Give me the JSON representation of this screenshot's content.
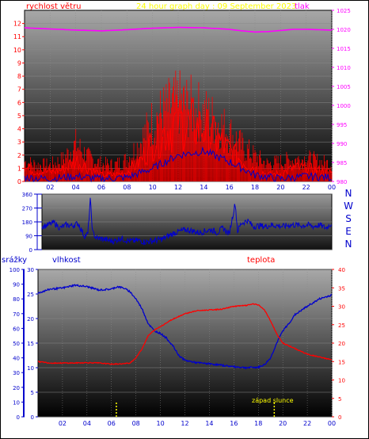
{
  "header": {
    "wind_label": "rychlost větru",
    "title": "24 hour graph day : 09 September 2023",
    "pressure_label": "tlak"
  },
  "colors": {
    "wind": "#ff0000",
    "gust": "#ff0000",
    "pressure": "#ff00ff",
    "direction": "#0000cc",
    "humidity": "#0000cc",
    "temperature": "#ff0000",
    "title": "#ffff00",
    "sunset_marker": "#ffff00",
    "rain_axis": "#0000cc"
  },
  "chart_data": [
    {
      "type": "line",
      "name": "wind_and_pressure",
      "title": "24 hour graph day : 09 September 2023",
      "xlabel": "",
      "ylabel_left": "rychlost větru",
      "ylabel_right": "tlak",
      "x_ticks": [
        "02",
        "04",
        "06",
        "08",
        "10",
        "12",
        "14",
        "16",
        "18",
        "20",
        "22",
        "00"
      ],
      "y_left_ticks": [
        "0",
        "1",
        "2",
        "3",
        "4",
        "5",
        "6",
        "7",
        "8",
        "9",
        "10",
        "11",
        "12"
      ],
      "y_right_ticks": [
        "980",
        "985",
        "990",
        "995",
        "1000",
        "1005",
        "1010",
        "1015",
        "1020",
        "1025"
      ],
      "y_left_lim": [
        0,
        13
      ],
      "y_right_lim": [
        980,
        1025
      ],
      "grid": true,
      "series": [
        {
          "key": "wind",
          "axis": "left",
          "x": [
            0,
            1,
            2,
            3,
            4,
            5,
            6,
            7,
            8,
            9,
            10,
            11,
            12,
            13,
            14,
            15,
            16,
            17,
            18,
            19,
            20,
            21,
            22,
            23,
            24
          ],
          "values": [
            1.0,
            0.8,
            0.7,
            0.9,
            1.6,
            1.0,
            0.5,
            0.5,
            0.7,
            1.5,
            3.0,
            3.8,
            4.5,
            4.3,
            4.0,
            3.2,
            2.3,
            1.6,
            1.0,
            0.5,
            0.6,
            1.0,
            1.0,
            0.8,
            0.7
          ]
        },
        {
          "key": "gust",
          "axis": "left",
          "x": [
            0,
            1,
            2,
            3,
            4,
            5,
            6,
            7,
            8,
            9,
            10,
            11,
            12,
            13,
            14,
            15,
            16,
            17,
            18,
            19,
            20,
            21,
            22,
            23,
            24
          ],
          "values": [
            1.8,
            1.5,
            1.5,
            2.0,
            3.4,
            2.2,
            1.6,
            1.5,
            2.0,
            3.5,
            5.5,
            6.5,
            7.2,
            6.8,
            6.2,
            5.5,
            4.5,
            3.2,
            2.3,
            1.6,
            1.8,
            2.0,
            2.1,
            1.8,
            1.6
          ]
        },
        {
          "key": "wind_avg",
          "axis": "left",
          "x": [
            0,
            2,
            4,
            6,
            8,
            10,
            12,
            14,
            16,
            18,
            20,
            22,
            24
          ],
          "values": [
            0.3,
            0.2,
            0.4,
            0.2,
            0.3,
            1.0,
            2.0,
            2.3,
            1.5,
            0.5,
            0.2,
            0.4,
            0.3
          ]
        },
        {
          "key": "pressure",
          "axis": "right",
          "x": [
            0,
            2,
            4,
            6,
            8,
            10,
            12,
            14,
            16,
            17,
            18,
            19,
            20,
            21,
            22,
            23,
            24
          ],
          "values": [
            1020.4,
            1020.1,
            1019.8,
            1019.6,
            1019.9,
            1020.3,
            1020.5,
            1020.4,
            1020.0,
            1019.6,
            1019.3,
            1019.4,
            1019.7,
            1020.0,
            1020.0,
            1019.9,
            1019.8
          ]
        }
      ]
    },
    {
      "type": "line",
      "name": "wind_direction",
      "x_ticks": [],
      "y_ticks": [
        "0",
        "90",
        "180",
        "270",
        "360"
      ],
      "y_lim": [
        0,
        360
      ],
      "compass_labels": [
        "N",
        "W",
        "S",
        "E",
        "N"
      ],
      "series": [
        {
          "key": "direction",
          "x": [
            0,
            0.5,
            1,
            1.5,
            2,
            2.5,
            3,
            3.5,
            3.8,
            4.0,
            4.2,
            4.5,
            5,
            5.5,
            6,
            6.5,
            7,
            7.5,
            8,
            8.5,
            9,
            9.5,
            10,
            10.5,
            11,
            11.5,
            12,
            12.5,
            13,
            13.5,
            14,
            14.5,
            15,
            15.5,
            16,
            16.2,
            16.5,
            16.8,
            17,
            17.5,
            18,
            18.5,
            19,
            19.5,
            20,
            20.5,
            21,
            21.5,
            22,
            22.5,
            23,
            23.5,
            24
          ],
          "values": [
            150,
            160,
            175,
            140,
            160,
            155,
            170,
            90,
            100,
            320,
            110,
            75,
            70,
            60,
            55,
            75,
            60,
            55,
            60,
            50,
            55,
            60,
            70,
            90,
            110,
            120,
            130,
            120,
            110,
            120,
            130,
            110,
            140,
            100,
            300,
            120,
            170,
            180,
            190,
            150,
            155,
            150,
            160,
            155,
            150,
            160,
            160,
            155,
            160,
            150,
            160,
            140,
            170
          ]
        }
      ]
    },
    {
      "type": "line",
      "name": "temperature_humidity_rain",
      "ylabel_rain": "srážky",
      "ylabel_humidity": "vlhkost",
      "ylabel_temperature": "teplota",
      "x_ticks": [
        "02",
        "04",
        "06",
        "08",
        "10",
        "12",
        "14",
        "16",
        "18",
        "20",
        "22",
        "00"
      ],
      "y_rain_ticks": [
        "0",
        "10",
        "20",
        "30",
        "40",
        "50",
        "60",
        "70",
        "80",
        "90",
        "100"
      ],
      "y_humidity_ticks": [
        "0",
        "5",
        "10",
        "15",
        "20",
        "25",
        "30"
      ],
      "y_temperature_ticks": [
        "0",
        "5",
        "10",
        "15",
        "20",
        "25",
        "30",
        "35",
        "40"
      ],
      "y_rain_lim": [
        0,
        100
      ],
      "y_humidity_lim": [
        0,
        30
      ],
      "y_temperature_lim": [
        0,
        40
      ],
      "sunset_label": "západ slunce",
      "sunset_time": 19.3,
      "sunrise_time": 6.4,
      "series": [
        {
          "key": "humidity",
          "axis": "vlhkost",
          "x": [
            0,
            0.5,
            1,
            2,
            3,
            4,
            5,
            6,
            6.5,
            7,
            7.5,
            8,
            8.5,
            9,
            9.5,
            10,
            10.5,
            11,
            11.5,
            12,
            13,
            14,
            15,
            16,
            17,
            18,
            18.5,
            19,
            19.5,
            20,
            20.5,
            21,
            22,
            23,
            24
          ],
          "values": [
            25.2,
            25.6,
            26.0,
            26.2,
            26.8,
            26.5,
            25.8,
            26.0,
            26.5,
            26.2,
            25.5,
            24.0,
            22.0,
            19.0,
            17.5,
            17.0,
            16.0,
            14.5,
            12.5,
            11.5,
            11.0,
            10.8,
            10.5,
            10.2,
            10.0,
            10.1,
            10.6,
            12.0,
            15.0,
            17.5,
            19.0,
            20.8,
            22.5,
            24.0,
            24.8
          ]
        },
        {
          "key": "temperature",
          "axis": "teplota",
          "x": [
            0,
            1,
            2,
            3,
            4,
            5,
            6,
            7,
            7.5,
            8,
            8.5,
            9,
            9.5,
            10,
            11,
            12,
            13,
            14,
            15,
            16,
            17,
            17.5,
            18,
            18.5,
            19,
            19.5,
            20,
            21,
            22,
            23,
            24
          ],
          "values": [
            15.0,
            14.6,
            14.6,
            14.6,
            14.7,
            14.6,
            14.3,
            14.4,
            14.6,
            16.0,
            18.5,
            22.0,
            23.5,
            24.5,
            26.5,
            28.0,
            28.8,
            29.0,
            29.2,
            30.0,
            30.2,
            30.6,
            30.4,
            29.0,
            26.0,
            22.5,
            20.0,
            18.5,
            17.0,
            16.2,
            15.5
          ]
        }
      ]
    }
  ]
}
